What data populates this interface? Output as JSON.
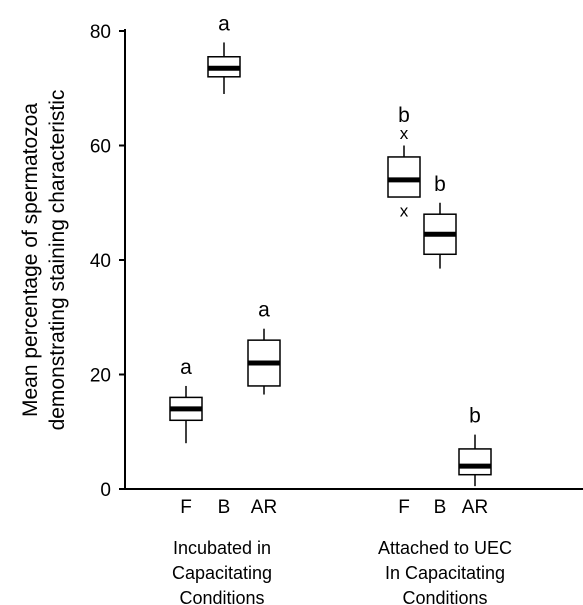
{
  "chart_data": {
    "type": "box",
    "ylabel_line1": "Mean percentage of spermatozoa",
    "ylabel_line2": "demonstrating staining characteristic",
    "ylim": [
      0,
      80
    ],
    "yticks": [
      0,
      20,
      40,
      60,
      80
    ],
    "groups": [
      {
        "label_lines": [
          "Incubated in",
          "Capacitating",
          "Conditions"
        ],
        "boxes": [
          {
            "category": "F",
            "whisker_low": 8,
            "q1": 12,
            "median": 14,
            "q3": 16,
            "whisker_high": 18,
            "letter": "a",
            "outliers": []
          },
          {
            "category": "B",
            "whisker_low": 69,
            "q1": 72,
            "median": 73.5,
            "q3": 75.5,
            "whisker_high": 78,
            "letter": "a",
            "outliers": []
          },
          {
            "category": "AR",
            "whisker_low": 16.5,
            "q1": 18,
            "median": 22,
            "q3": 26,
            "whisker_high": 28,
            "letter": "a",
            "outliers": []
          }
        ]
      },
      {
        "label_lines": [
          "Attached to UEC",
          "In Capacitating",
          "Conditions"
        ],
        "boxes": [
          {
            "category": "F",
            "whisker_low": 51,
            "q1": 51,
            "median": 54,
            "q3": 58,
            "whisker_high": 60,
            "letter": "b",
            "outliers": [
              62,
              48.5
            ]
          },
          {
            "category": "B",
            "whisker_low": 38.5,
            "q1": 41,
            "median": 44.5,
            "q3": 48,
            "whisker_high": 50,
            "letter": "b",
            "outliers": []
          },
          {
            "category": "AR",
            "whisker_low": 0.5,
            "q1": 2.5,
            "median": 4,
            "q3": 7,
            "whisker_high": 9.5,
            "letter": "b",
            "outliers": []
          }
        ]
      }
    ],
    "outlier_marker": "x",
    "grid": false,
    "legend": "none"
  }
}
